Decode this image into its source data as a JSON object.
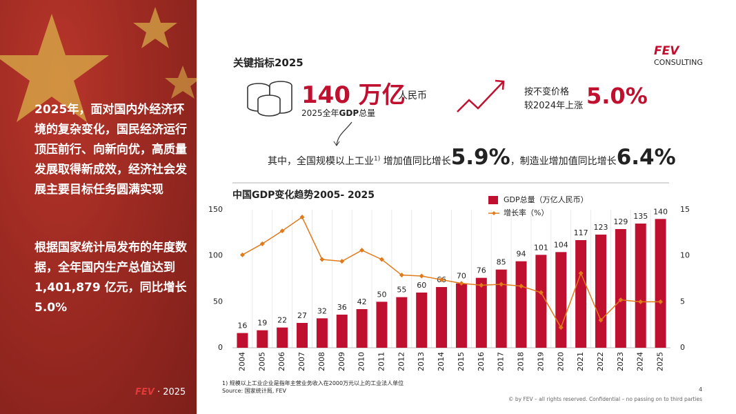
{
  "sidebar": {
    "paragraph_1": "2025年，面对国内外经济环境的复杂变化，国民经济运行顶压前行、向新向优，高质量发展取得新成效，经济社会发展主要目标任务圆满实现",
    "paragraph_2": "根据国家统计局发布的年度数据，全年国内生产总值达到1,401,879 亿元，同比增长 5.0%",
    "footer_brand": "FEV",
    "footer_year": "· 2025"
  },
  "header": {
    "title": "关键指标2025",
    "logo_top": "FEV",
    "logo_bottom": "CONSULTING"
  },
  "metrics": {
    "gdp_value": "140 万亿",
    "gdp_unit": "人民币",
    "gdp_caption_1": "2025全年",
    "gdp_caption_2": "GDP",
    "gdp_caption_3": "总量",
    "growth_caption_1": "按不变价格",
    "growth_caption_2": "较2024年上涨",
    "growth_value": "5.0%",
    "industry_text_1": "其中，全国规模以上工业",
    "industry_note": "1)",
    "industry_text_2": "增加值同比增长",
    "industry_value": "5.9%",
    "industry_text_3": "，制造业增加值同比增长",
    "manufacturing_value": "6.4%"
  },
  "chart_data": {
    "type": "bar",
    "title": "中国GDP变化趋势2005- 2025",
    "categories": [
      "2004",
      "2005",
      "2006",
      "2007",
      "2008",
      "2009",
      "2010",
      "2011",
      "2012",
      "2013",
      "2014",
      "2015",
      "2016",
      "2017",
      "2018",
      "2019",
      "2020",
      "2021",
      "2022",
      "2023",
      "2024",
      "2025"
    ],
    "series": [
      {
        "name": "GDP总量（万亿人民币）",
        "color": "#c0102f",
        "type": "bar",
        "values": [
          16,
          19,
          22,
          27,
          32,
          36,
          42,
          50,
          55,
          60,
          66,
          70,
          76,
          85,
          94,
          101,
          104,
          117,
          123,
          129,
          135,
          140
        ]
      },
      {
        "name": "增长率（%）",
        "color": "#e07a1a",
        "type": "line",
        "axis": "y2",
        "values": [
          10.1,
          11.3,
          12.7,
          14.2,
          9.6,
          9.4,
          10.6,
          9.6,
          7.9,
          7.8,
          7.4,
          7.0,
          6.8,
          6.9,
          6.7,
          6.0,
          2.2,
          8.1,
          3.0,
          5.2,
          5.0,
          5.0
        ]
      }
    ],
    "ylim": [
      0,
      150
    ],
    "yticks": [
      0,
      50,
      100,
      150
    ],
    "y2lim": [
      0,
      15
    ],
    "y2ticks": [
      0,
      5,
      10,
      15
    ],
    "legend": "top"
  },
  "footer": {
    "footnote": "1)  规模以上工业企业是指年主营业务收入在2000万元以上的工业法人单位",
    "source": "Source: 国家统计局, FEV",
    "page": "4",
    "copyright": "© by FEV – all rights reserved. Confidential – no passing on to third parties"
  }
}
